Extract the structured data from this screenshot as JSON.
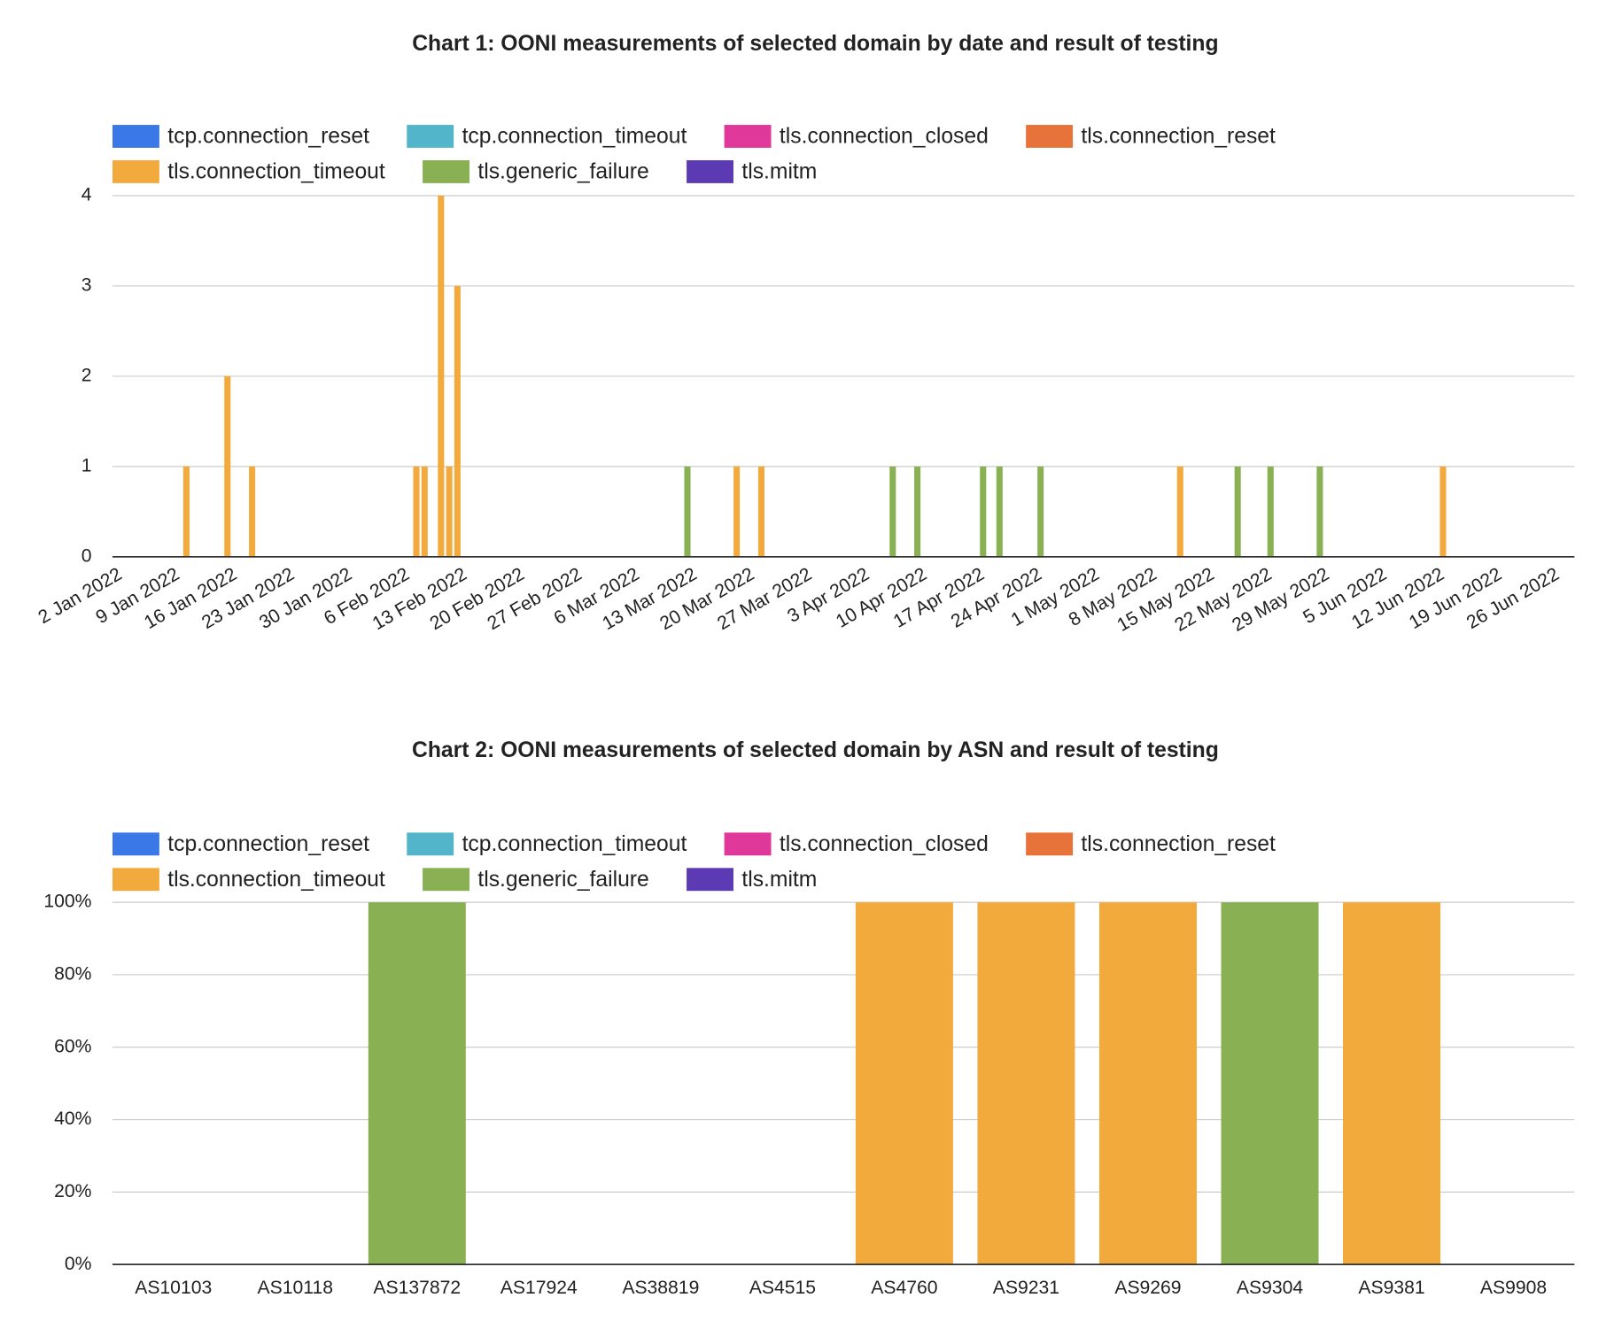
{
  "chart_data": [
    {
      "type": "bar",
      "stacked": true,
      "title": "Chart 1: OONI measurements of selected domain by date and result of testing",
      "x": [
        "2022-01-10",
        "2022-01-15",
        "2022-01-18",
        "2022-02-07",
        "2022-02-08",
        "2022-02-10",
        "2022-02-11",
        "2022-02-12",
        "2022-03-12",
        "2022-03-18",
        "2022-03-21",
        "2022-04-06",
        "2022-04-09",
        "2022-04-17",
        "2022-04-19",
        "2022-04-24",
        "2022-05-11",
        "2022-05-18",
        "2022-05-22",
        "2022-05-28",
        "2022-06-12"
      ],
      "series": [
        {
          "name": "tcp.connection_reset",
          "color": "#3b78e7",
          "values": [
            0,
            0,
            0,
            0,
            0,
            0,
            0,
            0,
            0,
            0,
            0,
            0,
            0,
            0,
            0,
            0,
            0,
            0,
            0,
            0,
            0
          ]
        },
        {
          "name": "tcp.connection_timeout",
          "color": "#53b5c9",
          "values": [
            0,
            0,
            0,
            0,
            0,
            0,
            0,
            0,
            0,
            0,
            0,
            0,
            0,
            0,
            0,
            0,
            0,
            0,
            0,
            0,
            0
          ]
        },
        {
          "name": "tls.connection_closed",
          "color": "#e0379b",
          "values": [
            0,
            0,
            0,
            0,
            0,
            0,
            0,
            0,
            0,
            0,
            0,
            0,
            0,
            0,
            0,
            0,
            0,
            0,
            0,
            0,
            0
          ]
        },
        {
          "name": "tls.connection_reset",
          "color": "#e8733a",
          "values": [
            0,
            0,
            0,
            0,
            0,
            0,
            0,
            0,
            0,
            0,
            0,
            0,
            0,
            0,
            0,
            0,
            0,
            0,
            0,
            0,
            0
          ]
        },
        {
          "name": "tls.connection_timeout",
          "color": "#f2aa3c",
          "values": [
            1,
            2,
            1,
            1,
            1,
            4,
            1,
            3,
            0,
            1,
            1,
            0,
            0,
            0,
            0,
            0,
            1,
            0,
            0,
            0,
            1
          ]
        },
        {
          "name": "tls.generic_failure",
          "color": "#89b153",
          "values": [
            0,
            0,
            0,
            0,
            0,
            0,
            0,
            0,
            1,
            0,
            0,
            1,
            1,
            1,
            1,
            1,
            0,
            1,
            1,
            1,
            0
          ]
        },
        {
          "name": "tls.mitm",
          "color": "#5c3ab3",
          "values": [
            0,
            0,
            0,
            0,
            0,
            0,
            0,
            0,
            0,
            0,
            0,
            0,
            0,
            0,
            0,
            0,
            0,
            0,
            0,
            0,
            0
          ]
        }
      ],
      "xlim": [
        "2022-01-01",
        "2022-06-28"
      ],
      "xticks": [
        {
          "value": "2022-01-02",
          "label": "2 Jan 2022"
        },
        {
          "value": "2022-01-09",
          "label": "9 Jan 2022"
        },
        {
          "value": "2022-01-16",
          "label": "16 Jan 2022"
        },
        {
          "value": "2022-01-23",
          "label": "23 Jan 2022"
        },
        {
          "value": "2022-01-30",
          "label": "30 Jan 2022"
        },
        {
          "value": "2022-02-06",
          "label": "6 Feb 2022"
        },
        {
          "value": "2022-02-13",
          "label": "13 Feb 2022"
        },
        {
          "value": "2022-02-20",
          "label": "20 Feb 2022"
        },
        {
          "value": "2022-02-27",
          "label": "27 Feb 2022"
        },
        {
          "value": "2022-03-06",
          "label": "6 Mar 2022"
        },
        {
          "value": "2022-03-13",
          "label": "13 Mar 2022"
        },
        {
          "value": "2022-03-20",
          "label": "20 Mar 2022"
        },
        {
          "value": "2022-03-27",
          "label": "27 Mar 2022"
        },
        {
          "value": "2022-04-03",
          "label": "3 Apr 2022"
        },
        {
          "value": "2022-04-10",
          "label": "10 Apr 2022"
        },
        {
          "value": "2022-04-17",
          "label": "17 Apr 2022"
        },
        {
          "value": "2022-04-24",
          "label": "24 Apr 2022"
        },
        {
          "value": "2022-05-01",
          "label": "1 May 2022"
        },
        {
          "value": "2022-05-08",
          "label": "8 May 2022"
        },
        {
          "value": "2022-05-15",
          "label": "15 May 2022"
        },
        {
          "value": "2022-05-22",
          "label": "22 May 2022"
        },
        {
          "value": "2022-05-29",
          "label": "29 May 2022"
        },
        {
          "value": "2022-06-05",
          "label": "5 Jun 2022"
        },
        {
          "value": "2022-06-12",
          "label": "12 Jun 2022"
        },
        {
          "value": "2022-06-19",
          "label": "19 Jun 2022"
        },
        {
          "value": "2022-06-26",
          "label": "26 Jun 2022"
        }
      ],
      "ylim": [
        0,
        4
      ],
      "yticks": [
        0,
        1,
        2,
        3,
        4
      ],
      "grid": true
    },
    {
      "type": "bar",
      "stacked": true,
      "title": "Chart 2: OONI measurements of selected domain by ASN and result of testing",
      "categories": [
        "AS10103",
        "AS10118",
        "AS137872",
        "AS17924",
        "AS38819",
        "AS4515",
        "AS4760",
        "AS9231",
        "AS9269",
        "AS9304",
        "AS9381",
        "AS9908"
      ],
      "series": [
        {
          "name": "tcp.connection_reset",
          "color": "#3b78e7",
          "values": [
            0,
            0,
            0,
            0,
            0,
            0,
            0,
            0,
            0,
            0,
            0,
            0
          ]
        },
        {
          "name": "tcp.connection_timeout",
          "color": "#53b5c9",
          "values": [
            0,
            0,
            0,
            0,
            0,
            0,
            0,
            0,
            0,
            0,
            0,
            0
          ]
        },
        {
          "name": "tls.connection_closed",
          "color": "#e0379b",
          "values": [
            0,
            0,
            0,
            0,
            0,
            0,
            0,
            0,
            0,
            0,
            0,
            0
          ]
        },
        {
          "name": "tls.connection_reset",
          "color": "#e8733a",
          "values": [
            0,
            0,
            0,
            0,
            0,
            0,
            0,
            0,
            0,
            0,
            0,
            0
          ]
        },
        {
          "name": "tls.connection_timeout",
          "color": "#f2aa3c",
          "values": [
            0,
            0,
            0,
            0,
            0,
            0,
            100,
            100,
            100,
            0,
            100,
            0
          ]
        },
        {
          "name": "tls.generic_failure",
          "color": "#89b153",
          "values": [
            0,
            0,
            100,
            0,
            0,
            0,
            0,
            0,
            0,
            100,
            0,
            0
          ]
        },
        {
          "name": "tls.mitm",
          "color": "#5c3ab3",
          "values": [
            0,
            0,
            0,
            0,
            0,
            0,
            0,
            0,
            0,
            0,
            0,
            0
          ]
        }
      ],
      "ylim": [
        0,
        100
      ],
      "yticks": [
        {
          "value": 0,
          "label": "0%"
        },
        {
          "value": 20,
          "label": "20%"
        },
        {
          "value": 40,
          "label": "40%"
        },
        {
          "value": 60,
          "label": "60%"
        },
        {
          "value": 80,
          "label": "80%"
        },
        {
          "value": 100,
          "label": "100%"
        }
      ],
      "grid": true
    }
  ]
}
